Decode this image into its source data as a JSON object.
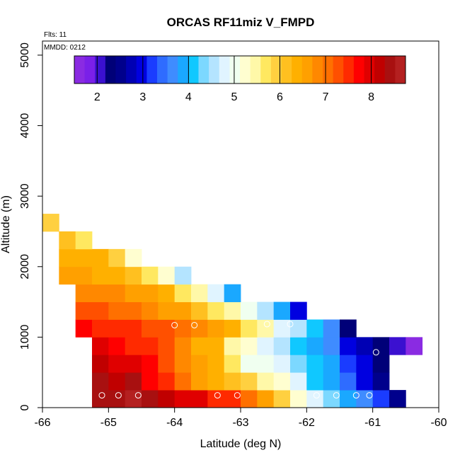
{
  "chart_data": {
    "type": "heatmap",
    "title": "ORCAS RF11miz V_FMPD",
    "xlabel": "Latitude (deg N)",
    "ylabel": "Altitude (m)",
    "xlim": [
      -66,
      -60
    ],
    "ylim": [
      0,
      5200
    ],
    "x_ticks": [
      -66,
      -65,
      -64,
      -63,
      -62,
      -61,
      -60
    ],
    "y_ticks": [
      0,
      1000,
      2000,
      3000,
      4000,
      5000
    ],
    "notes": [
      "Flts: 11",
      "MMDD: 0212"
    ],
    "colorbar": {
      "range": [
        1.5,
        8.75
      ],
      "ticks": [
        2,
        3,
        4,
        5,
        6,
        7,
        8
      ],
      "colors": [
        "#8a2be2",
        "#7a20e8",
        "#3b10d0",
        "#000078",
        "#00008c",
        "#0000b4",
        "#0000e0",
        "#1a3cff",
        "#2f6cff",
        "#3f8cff",
        "#1aa8ff",
        "#10c8ff",
        "#7cd8ff",
        "#b4e4ff",
        "#e0f4ff",
        "#f0fff0",
        "#fffed0",
        "#fff8a8",
        "#ffe860",
        "#ffd040",
        "#ffc020",
        "#ffb000",
        "#ffa000",
        "#ff8800",
        "#ff7000",
        "#ff5000",
        "#ff2a00",
        "#ff0000",
        "#e00000",
        "#c00000",
        "#a81010",
        "#b42020"
      ]
    },
    "bin": {
      "dlat": 0.25,
      "dalt": 250
    },
    "rows": [
      {
        "alt": 0,
        "lat0": -65.25,
        "values": [
          8.4,
          8.5,
          8.7,
          8.4,
          8.2,
          8.0,
          7.9,
          7.6,
          7.4,
          7.0,
          6.5,
          6.0,
          5.3,
          4.7,
          4.4,
          3.9,
          3.6,
          3.1,
          2.6
        ]
      },
      {
        "alt": 250,
        "lat0": -65.25,
        "values": [
          8.4,
          8.2,
          8.3,
          7.7,
          7.4,
          7.0,
          6.6,
          6.4,
          6.1,
          5.9,
          5.5,
          5.2,
          4.7,
          4.2,
          3.9,
          3.4,
          3.0,
          2.6
        ]
      },
      {
        "alt": 500,
        "lat0": -65.25,
        "values": [
          8.1,
          8.0,
          8.0,
          7.8,
          7.3,
          6.8,
          6.6,
          6.3,
          5.6,
          5.1,
          4.9,
          4.7,
          4.3,
          4.0,
          3.8,
          3.3,
          2.9,
          2.4
        ]
      },
      {
        "alt": 750,
        "lat0": -65.25,
        "values": [
          7.9,
          7.8,
          7.6,
          7.5,
          7.3,
          6.9,
          6.4,
          6.3,
          5.5,
          5.2,
          4.8,
          4.5,
          4.2,
          3.9,
          3.6,
          3.0,
          2.7,
          2.4,
          2.1,
          1.6
        ]
      },
      {
        "alt": 1000,
        "lat0": -65.5,
        "values": [
          7.7,
          7.6,
          7.5,
          7.4,
          7.3,
          7.2,
          7.0,
          6.8,
          6.6,
          6.3,
          5.8,
          5.4,
          4.8,
          4.6,
          4.1,
          3.7,
          2.4
        ]
      },
      {
        "alt": 1250,
        "lat0": -65.5,
        "values": [
          7.3,
          7.2,
          7.1,
          7.0,
          6.9,
          6.6,
          6.5,
          6.2,
          5.8,
          5.4,
          5.0,
          4.6,
          3.9,
          3.0
        ]
      },
      {
        "alt": 1500,
        "lat0": -65.5,
        "values": [
          6.9,
          6.8,
          6.8,
          6.7,
          6.6,
          6.4,
          5.8,
          5.4,
          4.7,
          3.8
        ]
      },
      {
        "alt": 1750,
        "lat0": -65.75,
        "values": [
          6.5,
          6.6,
          6.4,
          6.3,
          6.2,
          5.7,
          5.2,
          4.5
        ]
      },
      {
        "alt": 2000,
        "lat0": -65.75,
        "values": [
          6.3,
          6.4,
          6.3,
          5.9,
          5.3
        ]
      },
      {
        "alt": 2250,
        "lat0": -65.75,
        "values": [
          6.1,
          5.8
        ]
      },
      {
        "alt": 2500,
        "lat0": -66.0,
        "values": [
          6.0
        ]
      }
    ],
    "markers": [
      {
        "lat": -65.1,
        "alt": 175
      },
      {
        "lat": -64.85,
        "alt": 175
      },
      {
        "lat": -64.55,
        "alt": 175
      },
      {
        "lat": -63.35,
        "alt": 175
      },
      {
        "lat": -63.05,
        "alt": 175
      },
      {
        "lat": -61.85,
        "alt": 175
      },
      {
        "lat": -61.55,
        "alt": 175
      },
      {
        "lat": -61.25,
        "alt": 175
      },
      {
        "lat": -61.05,
        "alt": 175
      },
      {
        "lat": -64.0,
        "alt": 1170
      },
      {
        "lat": -63.7,
        "alt": 1170
      },
      {
        "lat": -62.6,
        "alt": 1185
      },
      {
        "lat": -62.25,
        "alt": 1185
      },
      {
        "lat": -60.95,
        "alt": 785
      }
    ]
  }
}
